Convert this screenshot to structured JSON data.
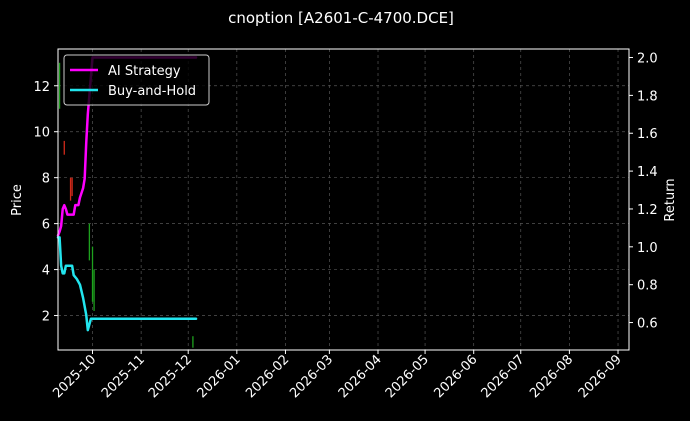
{
  "chart_data": {
    "type": "line",
    "title": "cnoption [A2601-C-4700.DCE]",
    "ylabel": "Price",
    "y2label": "Return",
    "ylim": [
      0.5,
      13.6
    ],
    "y2lim": [
      0.455,
      2.045
    ],
    "xlim": [
      "2025-09-09",
      "2026-09-08"
    ],
    "yticks": [
      2,
      4,
      6,
      8,
      10,
      12
    ],
    "y2ticks": [
      0.6,
      0.8,
      1.0,
      1.2,
      1.4,
      1.6,
      1.8,
      2.0
    ],
    "xticks": [
      "2025-10",
      "2025-11",
      "2025-12",
      "2026-01",
      "2026-02",
      "2026-03",
      "2026-04",
      "2026-05",
      "2026-06",
      "2026-07",
      "2026-08",
      "2026-09"
    ],
    "grid": true,
    "legend_position": "top-left",
    "colors": {
      "background": "#000000",
      "ai_strategy": "#ff00ff",
      "buy_and_hold": "#22e5ee",
      "candle_up": "#1ea11e",
      "candle_down": "#d32a1a",
      "grid": "#555555"
    },
    "series": [
      {
        "name": "AI Strategy",
        "axis": "right",
        "points": [
          [
            "2025-09-09",
            1.06
          ],
          [
            "2025-09-10",
            1.08
          ],
          [
            "2025-09-11",
            1.11
          ],
          [
            "2025-09-12",
            1.2
          ],
          [
            "2025-09-13",
            1.22
          ],
          [
            "2025-09-14",
            1.2
          ],
          [
            "2025-09-15",
            1.17
          ],
          [
            "2025-09-17",
            1.17
          ],
          [
            "2025-09-19",
            1.17
          ],
          [
            "2025-09-20",
            1.22
          ],
          [
            "2025-09-22",
            1.22
          ],
          [
            "2025-09-23",
            1.26
          ],
          [
            "2025-09-25",
            1.31
          ],
          [
            "2025-09-26",
            1.36
          ],
          [
            "2025-09-27",
            1.55
          ],
          [
            "2025-09-28",
            1.7
          ],
          [
            "2025-09-29",
            1.8
          ],
          [
            "2025-09-30",
            1.9
          ],
          [
            "2025-10-01",
            2.0
          ],
          [
            "2025-10-15",
            2.0
          ],
          [
            "2025-11-15",
            2.0
          ],
          [
            "2025-12-06",
            2.0
          ]
        ]
      },
      {
        "name": "Buy-and-Hold",
        "axis": "right",
        "points": [
          [
            "2025-09-09",
            1.05
          ],
          [
            "2025-09-10",
            1.05
          ],
          [
            "2025-09-11",
            0.9
          ],
          [
            "2025-09-12",
            0.86
          ],
          [
            "2025-09-13",
            0.86
          ],
          [
            "2025-09-14",
            0.9
          ],
          [
            "2025-09-15",
            0.9
          ],
          [
            "2025-09-17",
            0.9
          ],
          [
            "2025-09-18",
            0.9
          ],
          [
            "2025-09-19",
            0.85
          ],
          [
            "2025-09-21",
            0.83
          ],
          [
            "2025-09-23",
            0.8
          ],
          [
            "2025-09-25",
            0.73
          ],
          [
            "2025-09-27",
            0.64
          ],
          [
            "2025-09-28",
            0.56
          ],
          [
            "2025-09-29",
            0.59
          ],
          [
            "2025-09-30",
            0.62
          ],
          [
            "2025-10-01",
            0.62
          ],
          [
            "2025-10-15",
            0.62
          ],
          [
            "2025-11-15",
            0.62
          ],
          [
            "2025-12-06",
            0.62
          ]
        ]
      }
    ],
    "candles": [
      {
        "date": "2025-09-10",
        "low": 11.0,
        "high": 13.0,
        "direction": "up"
      },
      {
        "date": "2025-09-13",
        "low": 9.0,
        "high": 9.6,
        "direction": "down"
      },
      {
        "date": "2025-09-17",
        "low": 7.0,
        "high": 8.0,
        "direction": "down"
      },
      {
        "date": "2025-09-18",
        "low": 7.2,
        "high": 8.0,
        "direction": "down"
      },
      {
        "date": "2025-09-29",
        "low": 4.4,
        "high": 6.0,
        "direction": "up"
      },
      {
        "date": "2025-10-01",
        "low": 2.6,
        "high": 5.0,
        "direction": "up"
      },
      {
        "date": "2025-10-02",
        "low": 2.2,
        "high": 4.0,
        "direction": "up"
      },
      {
        "date": "2025-12-04",
        "low": 0.6,
        "high": 1.1,
        "direction": "up"
      }
    ]
  }
}
